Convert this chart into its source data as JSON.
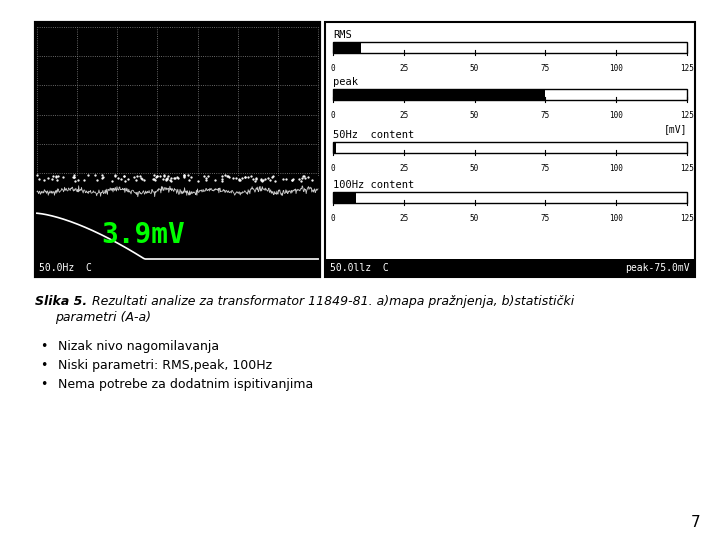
{
  "title_bold": "Slika 5.",
  "title_italic": " Rezultati analize za transformator 11849-81. a)mapa pražnjenja, b)statistički",
  "title_line2": "    parametri (A-a)",
  "bullets": [
    "Nizak nivo nagomilavanja",
    "Niski parametri: RMS,peak, 100Hz",
    "Nema potrebe za dodatnim ispitivanjima"
  ],
  "page_number": "7",
  "left_panel": {
    "bg_color": "#000000",
    "grid_color": "#888888",
    "label_bottom": "50.0Hz  C",
    "text_center": "3.9mV",
    "text_color": "#00ff00"
  },
  "right_panel": {
    "bars": [
      {
        "label": "RMS",
        "value": 10,
        "max": 125
      },
      {
        "label": "peak",
        "value": 75,
        "max": 125
      },
      {
        "label": "50Hz  content",
        "value": 1,
        "max": 125
      },
      {
        "label": "100Hz content",
        "value": 8,
        "max": 125
      }
    ],
    "unit_label": "[mV]",
    "tick_values": [
      0,
      25,
      50,
      75,
      100,
      125
    ],
    "label_bottom_left": "50.0llz  C",
    "label_bottom_right": "peak-75.0mV"
  },
  "figure_bg": "#ffffff"
}
